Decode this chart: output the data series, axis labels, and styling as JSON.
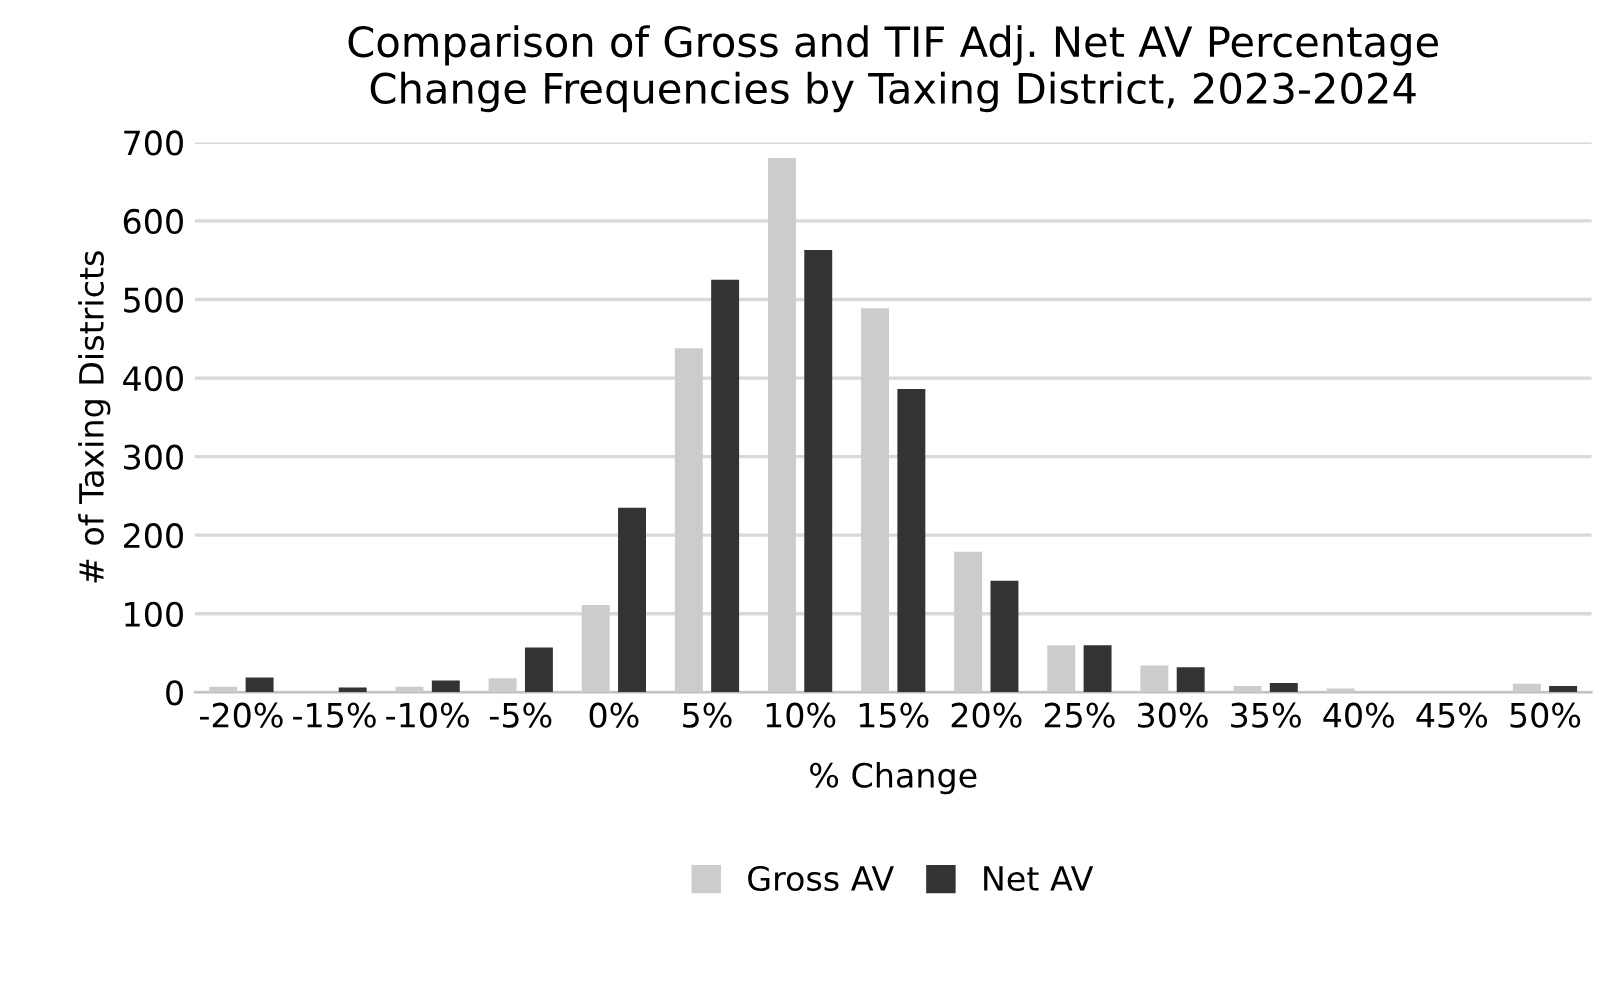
{
  "chart_data": {
    "type": "bar",
    "title": "Comparison of Gross and TIF Adj. Net AV Percentage\nChange Frequencies by Taxing District, 2023-2024",
    "xlabel": "% Change",
    "ylabel": "# of Taxing Districts",
    "categories": [
      "-20%",
      "-15%",
      "-10%",
      "-5%",
      "0%",
      "5%",
      "10%",
      "15%",
      "20%",
      "25%",
      "30%",
      "35%",
      "40%",
      "45%",
      "50%"
    ],
    "series": [
      {
        "name": "Gross AV",
        "color": "#cccccc",
        "values": [
          7,
          0,
          7,
          18,
          111,
          438,
          680,
          489,
          179,
          60,
          34,
          8,
          5,
          0,
          11
        ]
      },
      {
        "name": "Net AV",
        "color": "#333333",
        "values": [
          19,
          6,
          15,
          57,
          235,
          525,
          563,
          386,
          142,
          60,
          32,
          12,
          0,
          0,
          8
        ]
      }
    ],
    "ylim": [
      0,
      700
    ],
    "yticks": [
      0,
      100,
      200,
      300,
      400,
      500,
      600,
      700
    ],
    "grid": "y",
    "legend": "bottom"
  }
}
